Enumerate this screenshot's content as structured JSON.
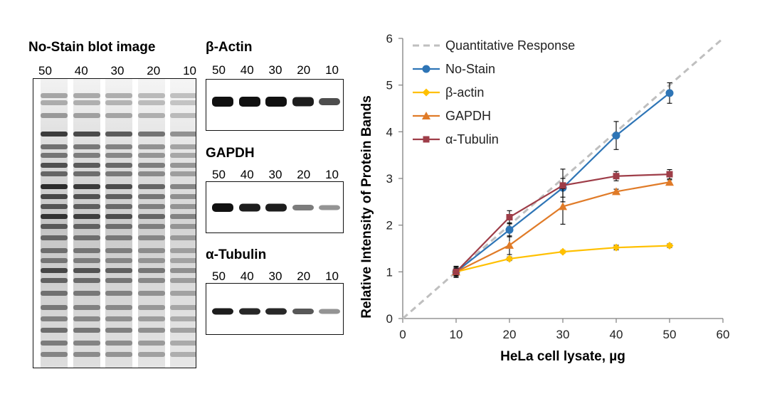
{
  "blots": {
    "nostain": {
      "title": "No-Stain blot image",
      "lanes": [
        "50",
        "40",
        "30",
        "20",
        "10"
      ]
    },
    "actin": {
      "title": "β-Actin",
      "lanes": [
        "50",
        "40",
        "30",
        "20",
        "10"
      ]
    },
    "gapdh": {
      "title": "GAPDH",
      "lanes": [
        "50",
        "40",
        "30",
        "20",
        "10"
      ]
    },
    "tubulin": {
      "title": "α-Tubulin",
      "lanes": [
        "50",
        "40",
        "30",
        "20",
        "10"
      ]
    }
  },
  "chart_data": {
    "type": "line",
    "xlabel": "HeLa cell lysate, µg",
    "ylabel": "Relative Intensity of Protein Bands",
    "xlim": [
      0,
      60
    ],
    "ylim": [
      0,
      6
    ],
    "xticks": [
      0,
      10,
      20,
      30,
      40,
      50,
      60
    ],
    "yticks": [
      0,
      1,
      2,
      3,
      4,
      5,
      6
    ],
    "legend_position": "top-left",
    "grid": false,
    "series": [
      {
        "name": "Quantitative Response",
        "style": "dashed",
        "color": "#bfbfbf",
        "marker": "none",
        "x": [
          0,
          60
        ],
        "y": [
          0,
          6
        ],
        "err": []
      },
      {
        "name": "No-Stain",
        "color": "#2e75b6",
        "marker": "circle",
        "x": [
          10,
          20,
          30,
          40,
          50
        ],
        "y": [
          1.0,
          1.9,
          2.8,
          3.92,
          4.83
        ],
        "err": [
          0.12,
          0.15,
          0.2,
          0.3,
          0.22
        ]
      },
      {
        "name": "β-actin",
        "color": "#ffc000",
        "marker": "diamond",
        "x": [
          10,
          20,
          30,
          40,
          50
        ],
        "y": [
          1.0,
          1.28,
          1.43,
          1.52,
          1.56
        ],
        "err": [
          0.05,
          0.04,
          0.03,
          0.05,
          0.04
        ]
      },
      {
        "name": "GAPDH",
        "color": "#e07b28",
        "marker": "triangle",
        "x": [
          10,
          20,
          30,
          40,
          50
        ],
        "y": [
          1.0,
          1.57,
          2.4,
          2.72,
          2.92
        ],
        "err": [
          0.1,
          0.2,
          0.38,
          0.05,
          0.05
        ]
      },
      {
        "name": "α-Tubulin",
        "color": "#9e3d48",
        "marker": "square",
        "x": [
          10,
          20,
          30,
          40,
          50
        ],
        "y": [
          1.0,
          2.17,
          2.85,
          3.05,
          3.09
        ],
        "err": [
          0.08,
          0.14,
          0.35,
          0.1,
          0.1
        ]
      }
    ]
  }
}
